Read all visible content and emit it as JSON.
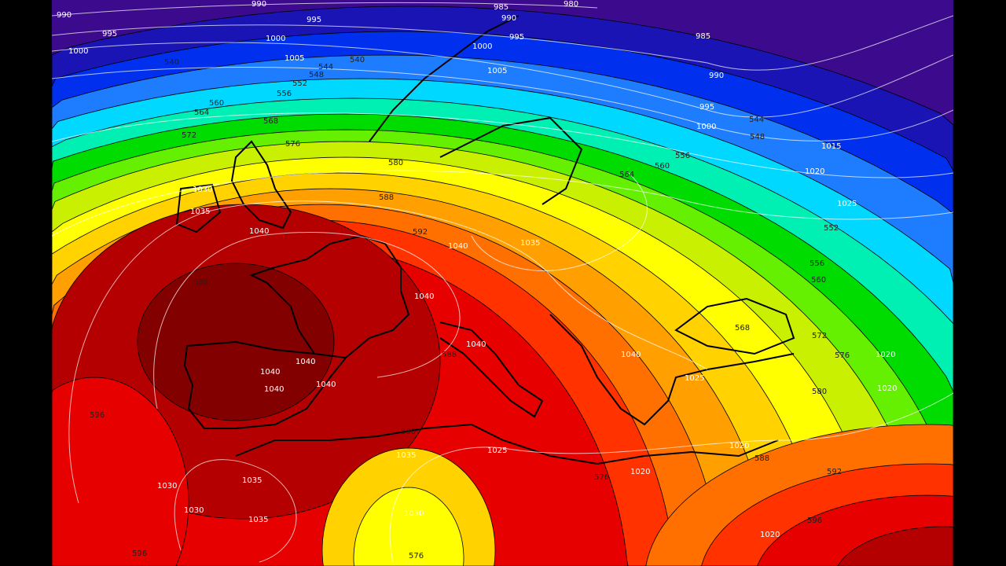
{
  "map": {
    "type": "geopotential height 500 hPa and sea-level pressure",
    "band_colors": [
      "#3c0a8c",
      "#1a14b4",
      "#0030ee",
      "#1e7cff",
      "#00d8ff",
      "#00f0b4",
      "#00dc00",
      "#64f000",
      "#c8f000",
      "#ffff00",
      "#ffd200",
      "#ffa000",
      "#ff7000",
      "#ff3200",
      "#e60000",
      "#b40000",
      "#820000"
    ],
    "height_contour_color": "#000000",
    "pressure_isobar_color": "#ffffff",
    "contour_labels": [
      "990",
      "995",
      "1000",
      "990",
      "995",
      "1000",
      "1005",
      "540",
      "540",
      "544",
      "548",
      "552",
      "556",
      "560",
      "564",
      "568",
      "572",
      "576",
      "580",
      "588",
      "592",
      "1040",
      "1030",
      "1035",
      "985",
      "990",
      "995",
      "1000",
      "1005",
      "980",
      "985",
      "990",
      "995",
      "1000",
      "548",
      "544",
      "1015",
      "1020",
      "1025",
      "552",
      "556",
      "560",
      "556",
      "560",
      "564",
      "1040",
      "1035",
      "1040",
      "1040",
      "588",
      "1040",
      "1040",
      "1040",
      "1040",
      "1040",
      "596",
      "1030",
      "1030",
      "1035",
      "1035",
      "596",
      "576",
      "1030",
      "580",
      "1035",
      "1025",
      "576",
      "1020",
      "1020",
      "572",
      "576",
      "1020",
      "580",
      "1020",
      "588",
      "592",
      "596",
      "1020",
      "588",
      "568",
      "1025"
    ]
  }
}
